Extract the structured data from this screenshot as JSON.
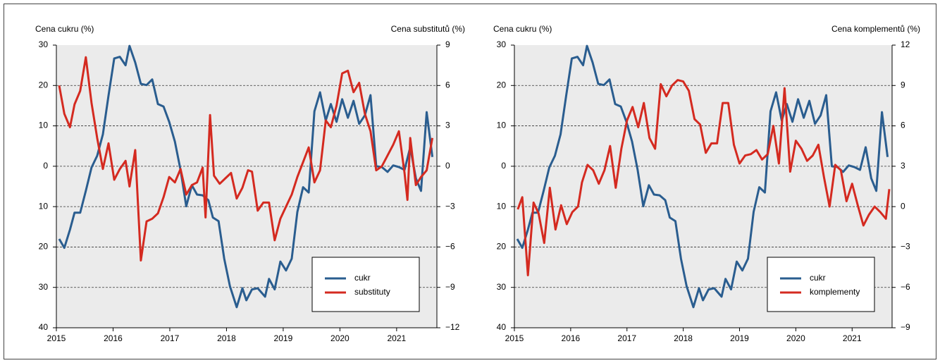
{
  "chart_data": [
    {
      "type": "line",
      "ylabel": "Cena cukru (%)",
      "y2label": "Cena substitutů (%)",
      "xlim": [
        2015,
        2021.71
      ],
      "xticks": [
        2015,
        2016,
        2017,
        2018,
        2019,
        2020,
        2021
      ],
      "ylim": [
        -40,
        30
      ],
      "yticks": [
        30,
        20,
        10,
        0,
        {
          "value": -10,
          "label": "10"
        },
        {
          "value": -20,
          "label": "20"
        },
        {
          "value": -30,
          "label": "30"
        },
        {
          "value": -40,
          "label": "40"
        }
      ],
      "y2lim": [
        -12,
        9
      ],
      "y2ticks": [
        9,
        6,
        3,
        0,
        {
          "value": -3,
          "label": "−3"
        },
        {
          "value": -6,
          "label": "−6"
        },
        {
          "value": -9,
          "label": "−9"
        },
        {
          "value": -12,
          "label": "−12"
        }
      ],
      "grid": true,
      "legend": "lower right",
      "series": [
        {
          "name": "cukr",
          "color": "#2a5d8f",
          "axis": "y",
          "x": [
            2015.05,
            2015.14,
            2015.24,
            2015.32,
            2015.42,
            2015.52,
            2015.62,
            2015.72,
            2015.82,
            2015.92,
            2016.02,
            2016.12,
            2016.22,
            2016.29,
            2016.39,
            2016.49,
            2016.59,
            2016.69,
            2016.79,
            2016.89,
            2016.99,
            2017.09,
            2017.19,
            2017.29,
            2017.39,
            2017.48,
            2017.58,
            2017.68,
            2017.76,
            2017.86,
            2017.96,
            2018.06,
            2018.18,
            2018.28,
            2018.35,
            2018.45,
            2018.55,
            2018.68,
            2018.75,
            2018.85,
            2018.95,
            2019.05,
            2019.15,
            2019.25,
            2019.35,
            2019.45,
            2019.55,
            2019.65,
            2019.75,
            2019.84,
            2019.94,
            2020.04,
            2020.14,
            2020.24,
            2020.34,
            2020.44,
            2020.54,
            2020.64,
            2020.74,
            2020.84,
            2020.94,
            2021.04,
            2021.14,
            2021.24,
            2021.34,
            2021.43,
            2021.53,
            2021.63
          ],
          "values": [
            -18.0,
            -20.2,
            -15.7,
            -11.5,
            -11.5,
            -6.1,
            -0.3,
            2.6,
            7.9,
            17.5,
            26.7,
            27.1,
            25.0,
            29.8,
            25.7,
            20.4,
            20.1,
            21.5,
            15.4,
            14.8,
            11.0,
            6.1,
            -0.9,
            -9.9,
            -4.7,
            -7.0,
            -7.2,
            -8.4,
            -12.7,
            -13.6,
            -22.9,
            -29.7,
            -34.9,
            -30.2,
            -33.2,
            -30.5,
            -30.2,
            -32.3,
            -27.9,
            -30.5,
            -23.6,
            -25.8,
            -22.9,
            -11.3,
            -5.2,
            -6.5,
            13.6,
            18.3,
            11.3,
            15.4,
            11.0,
            16.6,
            12.0,
            16.2,
            10.5,
            12.6,
            17.6,
            0,
            -0.2,
            -1.4,
            0.2,
            -0.2,
            -0.9,
            4.7,
            -3.0,
            -6.1,
            13.4,
            2.3
          ]
        },
        {
          "name": "substituty",
          "color": "#d42a20",
          "axis": "y2",
          "x": [
            2015.05,
            2015.14,
            2015.24,
            2015.32,
            2015.42,
            2015.52,
            2015.62,
            2015.72,
            2015.82,
            2015.92,
            2016.02,
            2016.12,
            2016.22,
            2016.29,
            2016.39,
            2016.49,
            2016.59,
            2016.69,
            2016.79,
            2016.89,
            2016.99,
            2017.09,
            2017.19,
            2017.29,
            2017.39,
            2017.48,
            2017.58,
            2017.63,
            2017.71,
            2017.78,
            2017.88,
            2017.98,
            2018.08,
            2018.18,
            2018.28,
            2018.38,
            2018.45,
            2018.55,
            2018.65,
            2018.75,
            2018.85,
            2018.95,
            2019.05,
            2019.15,
            2019.25,
            2019.35,
            2019.45,
            2019.55,
            2019.65,
            2019.75,
            2019.84,
            2019.94,
            2020.04,
            2020.14,
            2020.24,
            2020.34,
            2020.44,
            2020.54,
            2020.64,
            2020.74,
            2020.84,
            2020.94,
            2021.04,
            2021.14,
            2021.19,
            2021.24,
            2021.34,
            2021.43,
            2021.53,
            2021.63
          ],
          "values": [
            6.0,
            3.9,
            2.9,
            4.6,
            5.6,
            8.1,
            4.7,
            2.1,
            -0.2,
            1.7,
            -1.0,
            -0.2,
            0.4,
            -1.5,
            1.2,
            -7.0,
            -4.1,
            -3.9,
            -3.5,
            -2.3,
            -0.8,
            -1.2,
            -0.2,
            -2.1,
            -1.4,
            -1.2,
            -0.1,
            -3.8,
            3.8,
            -0.7,
            -1.3,
            -0.9,
            -0.5,
            -2.4,
            -1.6,
            -0.3,
            -0.4,
            -3.3,
            -2.7,
            -2.7,
            -5.5,
            -3.9,
            -3.0,
            -2.1,
            -0.8,
            0.3,
            1.4,
            -1.2,
            -0.3,
            3.4,
            2.9,
            4.5,
            6.9,
            7.1,
            5.5,
            6.2,
            3.9,
            2.6,
            -0.3,
            0,
            0.8,
            1.6,
            2.6,
            -0.5,
            -2.5,
            2.1,
            -1.4,
            -0.8,
            -0.3,
            2.1
          ]
        }
      ]
    },
    {
      "type": "line",
      "ylabel": "Cena cukru (%)",
      "y2label": "Cena komplementů (%)",
      "xlim": [
        2015,
        2021.71
      ],
      "xticks": [
        2015,
        2016,
        2017,
        2018,
        2019,
        2020,
        2021
      ],
      "ylim": [
        -40,
        30
      ],
      "yticks": [
        30,
        20,
        10,
        0,
        {
          "value": -10,
          "label": "10"
        },
        {
          "value": -20,
          "label": "20"
        },
        {
          "value": -30,
          "label": "30"
        },
        {
          "value": -40,
          "label": "40"
        }
      ],
      "y2lim": [
        -9,
        12
      ],
      "y2ticks": [
        12,
        9,
        6,
        3,
        0,
        {
          "value": -3,
          "label": "−3"
        },
        {
          "value": -6,
          "label": "−6"
        },
        {
          "value": -9,
          "label": "−9"
        }
      ],
      "grid": true,
      "legend": "lower right",
      "series": [
        {
          "name": "cukr",
          "color": "#2a5d8f",
          "axis": "y",
          "x": [
            2015.05,
            2015.14,
            2015.24,
            2015.32,
            2015.42,
            2015.52,
            2015.62,
            2015.72,
            2015.82,
            2015.92,
            2016.02,
            2016.12,
            2016.22,
            2016.29,
            2016.39,
            2016.49,
            2016.59,
            2016.69,
            2016.79,
            2016.89,
            2016.99,
            2017.09,
            2017.19,
            2017.29,
            2017.39,
            2017.48,
            2017.58,
            2017.68,
            2017.76,
            2017.86,
            2017.96,
            2018.06,
            2018.18,
            2018.28,
            2018.35,
            2018.45,
            2018.55,
            2018.68,
            2018.75,
            2018.85,
            2018.95,
            2019.05,
            2019.15,
            2019.25,
            2019.35,
            2019.45,
            2019.55,
            2019.65,
            2019.75,
            2019.84,
            2019.94,
            2020.04,
            2020.14,
            2020.24,
            2020.34,
            2020.44,
            2020.54,
            2020.64,
            2020.74,
            2020.84,
            2020.94,
            2021.04,
            2021.14,
            2021.24,
            2021.34,
            2021.43,
            2021.53,
            2021.63
          ],
          "values": [
            -18.0,
            -20.2,
            -15.7,
            -11.5,
            -11.5,
            -6.1,
            -0.3,
            2.6,
            7.9,
            17.5,
            26.7,
            27.1,
            25.0,
            29.8,
            25.7,
            20.4,
            20.1,
            21.5,
            15.4,
            14.8,
            11.0,
            6.1,
            -0.9,
            -9.9,
            -4.7,
            -7.0,
            -7.2,
            -8.4,
            -12.7,
            -13.6,
            -22.9,
            -29.7,
            -34.9,
            -30.2,
            -33.2,
            -30.5,
            -30.2,
            -32.3,
            -27.9,
            -30.5,
            -23.6,
            -25.8,
            -22.9,
            -11.3,
            -5.2,
            -6.5,
            13.6,
            18.3,
            11.3,
            15.4,
            11.0,
            16.6,
            12.0,
            16.2,
            10.5,
            12.6,
            17.6,
            0,
            -0.2,
            -1.4,
            0.2,
            -0.2,
            -0.9,
            4.7,
            -3.0,
            -6.1,
            13.4,
            2.3
          ]
        },
        {
          "name": "komplementy",
          "color": "#d42a20",
          "axis": "y2",
          "x": [
            2015.06,
            2015.14,
            2015.24,
            2015.34,
            2015.43,
            2015.53,
            2015.63,
            2015.73,
            2015.83,
            2015.93,
            2016.03,
            2016.13,
            2016.2,
            2016.3,
            2016.4,
            2016.5,
            2016.6,
            2016.7,
            2016.8,
            2016.9,
            2017.0,
            2017.1,
            2017.2,
            2017.3,
            2017.4,
            2017.5,
            2017.6,
            2017.7,
            2017.8,
            2017.9,
            2018.0,
            2018.1,
            2018.2,
            2018.3,
            2018.4,
            2018.5,
            2018.6,
            2018.7,
            2018.8,
            2018.9,
            2019.0,
            2019.1,
            2019.2,
            2019.3,
            2019.4,
            2019.5,
            2019.6,
            2019.7,
            2019.8,
            2019.9,
            2020.0,
            2020.1,
            2020.2,
            2020.3,
            2020.4,
            2020.5,
            2020.6,
            2020.7,
            2020.8,
            2020.9,
            2021.0,
            2021.1,
            2021.2,
            2021.3,
            2021.4,
            2021.5,
            2021.6,
            2021.66
          ],
          "values": [
            -0.2,
            0.7,
            -5.1,
            0.3,
            -0.5,
            -2.7,
            1.4,
            -1.7,
            0.1,
            -1.3,
            -0.4,
            0,
            1.8,
            3.1,
            2.7,
            1.7,
            2.7,
            4.5,
            1.4,
            4.3,
            6.4,
            7.4,
            5.9,
            7.7,
            5.1,
            4.3,
            9.1,
            8.2,
            9.0,
            9.4,
            9.3,
            8.6,
            6.5,
            6.1,
            4.0,
            4.7,
            4.7,
            7.7,
            7.7,
            4.6,
            3.2,
            3.8,
            3.9,
            4.2,
            3.5,
            3.9,
            6.0,
            3.2,
            8.8,
            2.6,
            4.9,
            4.3,
            3.4,
            3.8,
            4.6,
            2.2,
            0,
            3.1,
            2.7,
            0.4,
            1.7,
            0.1,
            -1.4,
            -0.6,
            0,
            -0.4,
            -0.9,
            1.3
          ]
        }
      ]
    }
  ]
}
